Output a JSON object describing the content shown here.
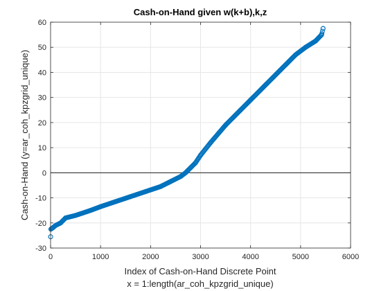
{
  "chart_data": {
    "type": "scatter",
    "title": "Cash-on-Hand given w(k+b),k,z",
    "xlabel": "Index of Cash-on-Hand Discrete Point",
    "xlabel_line2": "x = 1:length(ar_coh_kpzgrid_unique)",
    "ylabel": "Cash-on-Hand (y=ar_coh_kpzgrid_unique)",
    "xlim": [
      0,
      6000
    ],
    "ylim": [
      -30,
      60
    ],
    "xticks": [
      0,
      1000,
      2000,
      3000,
      4000,
      5000,
      6000
    ],
    "yticks": [
      -30,
      -20,
      -10,
      0,
      10,
      20,
      30,
      40,
      50,
      60
    ],
    "grid": true,
    "reference_line": {
      "y": 0,
      "color": "#000000"
    },
    "marker": "open-circle",
    "series_color": "#0072BD",
    "curve_points": [
      [
        1,
        -25.5
      ],
      [
        5,
        -22.5
      ],
      [
        40,
        -22
      ],
      [
        100,
        -21
      ],
      [
        200,
        -20
      ],
      [
        300,
        -18
      ],
      [
        500,
        -17
      ],
      [
        800,
        -15
      ],
      [
        1000,
        -13.5
      ],
      [
        1300,
        -11.5
      ],
      [
        1600,
        -9.5
      ],
      [
        1900,
        -7.5
      ],
      [
        2200,
        -5.5
      ],
      [
        2400,
        -3.5
      ],
      [
        2600,
        -1.5
      ],
      [
        2700,
        0
      ],
      [
        2800,
        2
      ],
      [
        2900,
        4
      ],
      [
        3000,
        7
      ],
      [
        3200,
        12
      ],
      [
        3500,
        19
      ],
      [
        3800,
        25
      ],
      [
        4000,
        29
      ],
      [
        4300,
        35
      ],
      [
        4600,
        41
      ],
      [
        4900,
        47
      ],
      [
        5100,
        50
      ],
      [
        5300,
        52.5
      ],
      [
        5420,
        55
      ],
      [
        5450,
        57.5
      ]
    ],
    "n_points": 5450
  }
}
